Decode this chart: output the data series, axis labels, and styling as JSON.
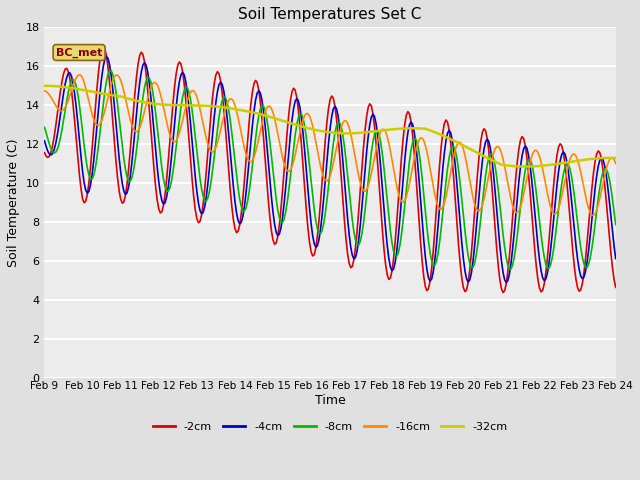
{
  "title": "Soil Temperatures Set C",
  "xlabel": "Time",
  "ylabel": "Soil Temperature (C)",
  "ylim": [
    0,
    18
  ],
  "yticks": [
    0,
    2,
    4,
    6,
    8,
    10,
    12,
    14,
    16,
    18
  ],
  "x_tick_labels": [
    "Feb 9",
    "Feb 10",
    "Feb 11",
    "Feb 12",
    "Feb 13",
    "Feb 14",
    "Feb 15",
    "Feb 16",
    "Feb 17",
    "Feb 18",
    "Feb 19",
    "Feb 20",
    "Feb 21",
    "Feb 22",
    "Feb 23",
    "Feb 24"
  ],
  "annotation_text": "BC_met",
  "series": {
    "-2cm": {
      "color": "#dd0000",
      "lw": 1.2
    },
    "-4cm": {
      "color": "#0000cc",
      "lw": 1.2
    },
    "-8cm": {
      "color": "#00bb00",
      "lw": 1.2
    },
    "-16cm": {
      "color": "#ff8800",
      "lw": 1.2
    },
    "-32cm": {
      "color": "#cccc00",
      "lw": 1.8
    }
  },
  "bg_color": "#e0e0e0",
  "plot_bg": "#ececec",
  "grid_color": "#ffffff"
}
